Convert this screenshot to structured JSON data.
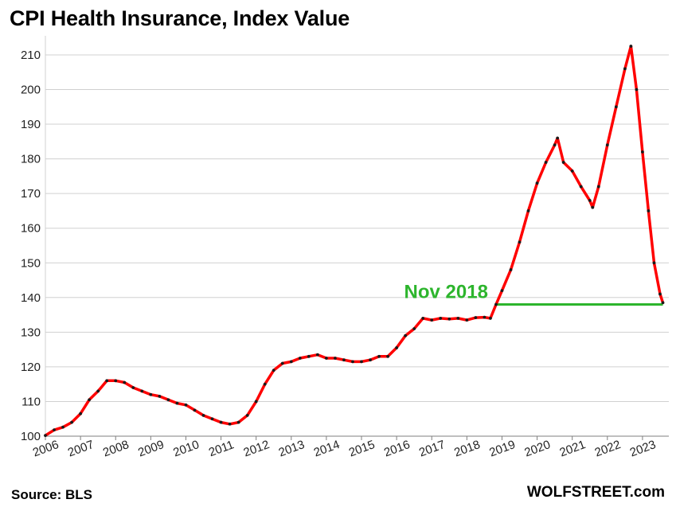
{
  "title": "CPI Health Insurance, Index Value",
  "source": "Source: BLS",
  "brand": "WOLFSTREET.com",
  "chart_data": {
    "type": "line",
    "title": "CPI Health Insurance, Index Value",
    "xlabel": "",
    "ylabel": "",
    "ylim": [
      100,
      213
    ],
    "xlim": [
      2006.0,
      2023.75
    ],
    "y_ticks": [
      100,
      110,
      120,
      130,
      140,
      150,
      160,
      170,
      180,
      190,
      200,
      210
    ],
    "x_ticks": [
      "2006",
      "2007",
      "2008",
      "2009",
      "2010",
      "2011",
      "2012",
      "2013",
      "2014",
      "2015",
      "2016",
      "2017",
      "2018",
      "2019",
      "2020",
      "2021",
      "2022",
      "2023"
    ],
    "grid": true,
    "colors": {
      "line": "#ff0000",
      "marker": "#1a1a1a",
      "reference": "#2db52d"
    },
    "series": [
      {
        "values": [
          [
            2006.0,
            100.2
          ],
          [
            2006.25,
            101.8
          ],
          [
            2006.5,
            102.6
          ],
          [
            2006.75,
            104.0
          ],
          [
            2007.0,
            106.5
          ],
          [
            2007.25,
            110.5
          ],
          [
            2007.5,
            113.0
          ],
          [
            2007.75,
            116.0
          ],
          [
            2008.0,
            116.0
          ],
          [
            2008.25,
            115.5
          ],
          [
            2008.5,
            114.0
          ],
          [
            2008.75,
            113.0
          ],
          [
            2009.0,
            112.0
          ],
          [
            2009.25,
            111.5
          ],
          [
            2009.5,
            110.5
          ],
          [
            2009.75,
            109.5
          ],
          [
            2010.0,
            109.0
          ],
          [
            2010.25,
            107.5
          ],
          [
            2010.5,
            106.0
          ],
          [
            2010.75,
            105.0
          ],
          [
            2011.0,
            104.0
          ],
          [
            2011.25,
            103.5
          ],
          [
            2011.5,
            104.0
          ],
          [
            2011.75,
            106.0
          ],
          [
            2012.0,
            110.0
          ],
          [
            2012.25,
            115.0
          ],
          [
            2012.5,
            119.0
          ],
          [
            2012.75,
            121.0
          ],
          [
            2013.0,
            121.5
          ],
          [
            2013.25,
            122.5
          ],
          [
            2013.5,
            123.0
          ],
          [
            2013.75,
            123.5
          ],
          [
            2014.0,
            122.5
          ],
          [
            2014.25,
            122.5
          ],
          [
            2014.5,
            122.0
          ],
          [
            2014.75,
            121.5
          ],
          [
            2015.0,
            121.5
          ],
          [
            2015.25,
            122.0
          ],
          [
            2015.5,
            123.0
          ],
          [
            2015.75,
            123.0
          ],
          [
            2016.0,
            125.5
          ],
          [
            2016.25,
            129.0
          ],
          [
            2016.5,
            131.0
          ],
          [
            2016.75,
            134.0
          ],
          [
            2017.0,
            133.5
          ],
          [
            2017.25,
            134.0
          ],
          [
            2017.5,
            133.8
          ],
          [
            2017.75,
            134.0
          ],
          [
            2018.0,
            133.5
          ],
          [
            2018.25,
            134.2
          ],
          [
            2018.5,
            134.3
          ],
          [
            2018.67,
            134.0
          ],
          [
            2018.83,
            138.0
          ],
          [
            2019.0,
            142.0
          ],
          [
            2019.25,
            148.0
          ],
          [
            2019.5,
            156.0
          ],
          [
            2019.75,
            165.0
          ],
          [
            2020.0,
            173.0
          ],
          [
            2020.25,
            179.0
          ],
          [
            2020.5,
            184.0
          ],
          [
            2020.58,
            186.0
          ],
          [
            2020.75,
            179.0
          ],
          [
            2021.0,
            176.5
          ],
          [
            2021.25,
            172.0
          ],
          [
            2021.5,
            168.0
          ],
          [
            2021.58,
            166.0
          ],
          [
            2021.75,
            172.0
          ],
          [
            2022.0,
            184.0
          ],
          [
            2022.25,
            195.0
          ],
          [
            2022.5,
            206.0
          ],
          [
            2022.67,
            212.5
          ],
          [
            2022.83,
            200.0
          ],
          [
            2023.0,
            182.0
          ],
          [
            2023.17,
            165.0
          ],
          [
            2023.33,
            150.0
          ],
          [
            2023.5,
            141.0
          ],
          [
            2023.58,
            138.5
          ]
        ]
      }
    ],
    "annotations": [
      {
        "text": "Nov 2018",
        "x": 2018.83,
        "y": 138.0,
        "type": "reference-line",
        "x_end": 2023.58
      }
    ]
  }
}
